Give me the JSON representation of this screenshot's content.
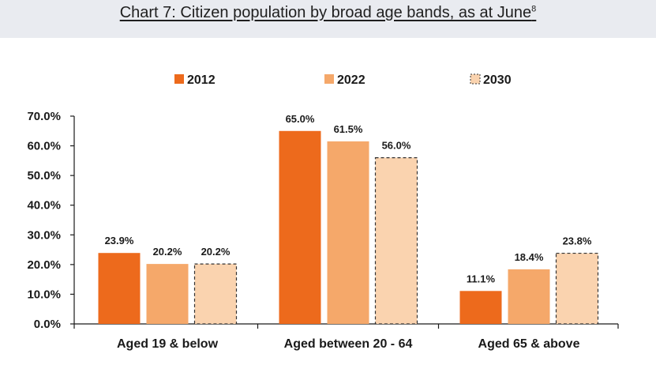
{
  "title": "Chart 7: Citizen population by broad age bands, as at June",
  "title_footnote": "8",
  "colors": {
    "series_2012": "#ed6a1c",
    "series_2022": "#f5a86a",
    "series_2030": "#fad3af",
    "axis": "#1a1a1a",
    "title_band": "#e9ebf0"
  },
  "chart_data": {
    "type": "bar",
    "categories": [
      "Aged 19 & below",
      "Aged between 20 - 64",
      "Aged 65 & above"
    ],
    "series": [
      {
        "name": "2012",
        "values": [
          23.9,
          65.0,
          11.1
        ],
        "labels": [
          "23.9%",
          "65.0%",
          "11.1%"
        ],
        "style": "solid"
      },
      {
        "name": "2022",
        "values": [
          20.2,
          61.5,
          18.4
        ],
        "labels": [
          "20.2%",
          "61.5%",
          "18.4%"
        ],
        "style": "solid"
      },
      {
        "name": "2030",
        "values": [
          20.2,
          56.0,
          23.8
        ],
        "labels": [
          "20.2%",
          "56.0%",
          "23.8%"
        ],
        "style": "dashed"
      }
    ],
    "ylim": [
      0,
      70
    ],
    "yticks": [
      0,
      10,
      20,
      30,
      40,
      50,
      60,
      70
    ],
    "ytick_labels": [
      "0.0%",
      "10.0%",
      "20.0%",
      "30.0%",
      "40.0%",
      "50.0%",
      "60.0%",
      "70.0%"
    ],
    "xlabel": "",
    "ylabel": "",
    "grid": false,
    "legend_position": "top"
  }
}
